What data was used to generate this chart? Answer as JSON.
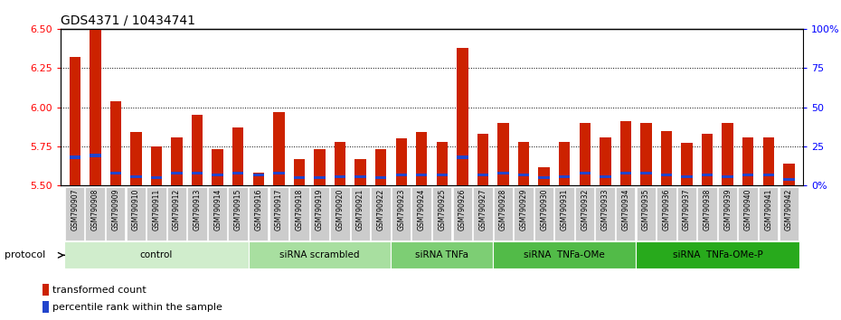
{
  "title": "GDS4371 / 10434741",
  "samples": [
    "GSM790907",
    "GSM790908",
    "GSM790909",
    "GSM790910",
    "GSM790911",
    "GSM790912",
    "GSM790913",
    "GSM790914",
    "GSM790915",
    "GSM790916",
    "GSM790917",
    "GSM790918",
    "GSM790919",
    "GSM790920",
    "GSM790921",
    "GSM790922",
    "GSM790923",
    "GSM790924",
    "GSM790925",
    "GSM790926",
    "GSM790927",
    "GSM790928",
    "GSM790929",
    "GSM790930",
    "GSM790931",
    "GSM790932",
    "GSM790933",
    "GSM790934",
    "GSM790935",
    "GSM790936",
    "GSM790937",
    "GSM790938",
    "GSM790939",
    "GSM790940",
    "GSM790941",
    "GSM790942"
  ],
  "red_values": [
    6.32,
    6.5,
    6.04,
    5.84,
    5.75,
    5.81,
    5.95,
    5.73,
    5.87,
    5.58,
    5.97,
    5.67,
    5.73,
    5.78,
    5.67,
    5.73,
    5.8,
    5.84,
    5.78,
    6.38,
    5.83,
    5.9,
    5.78,
    5.62,
    5.78,
    5.9,
    5.81,
    5.91,
    5.9,
    5.85,
    5.77,
    5.83,
    5.9,
    5.81,
    5.81,
    5.64
  ],
  "blue_bottoms": [
    5.67,
    5.68,
    5.57,
    5.55,
    5.54,
    5.57,
    5.57,
    5.56,
    5.57,
    5.56,
    5.57,
    5.54,
    5.54,
    5.55,
    5.55,
    5.54,
    5.56,
    5.56,
    5.56,
    5.67,
    5.56,
    5.57,
    5.56,
    5.54,
    5.55,
    5.57,
    5.55,
    5.57,
    5.57,
    5.56,
    5.55,
    5.56,
    5.55,
    5.56,
    5.56,
    5.53
  ],
  "blue_heights": [
    0.022,
    0.022,
    0.018,
    0.018,
    0.018,
    0.018,
    0.018,
    0.018,
    0.018,
    0.018,
    0.018,
    0.018,
    0.018,
    0.018,
    0.018,
    0.018,
    0.018,
    0.018,
    0.018,
    0.022,
    0.018,
    0.018,
    0.018,
    0.018,
    0.018,
    0.018,
    0.018,
    0.018,
    0.018,
    0.018,
    0.018,
    0.018,
    0.018,
    0.018,
    0.018,
    0.018
  ],
  "ymin": 5.5,
  "ymax": 6.5,
  "yticks": [
    5.5,
    5.75,
    6.0,
    6.25,
    6.5
  ],
  "right_yticks": [
    0,
    25,
    50,
    75,
    100
  ],
  "groups": [
    {
      "label": "control",
      "start": 0,
      "end": 9,
      "color": "#d0edcc"
    },
    {
      "label": "siRNA scrambled",
      "start": 9,
      "end": 16,
      "color": "#a8dfa0"
    },
    {
      "label": "siRNA TNFa",
      "start": 16,
      "end": 21,
      "color": "#7dce74"
    },
    {
      "label": "siRNA  TNFa-OMe",
      "start": 21,
      "end": 28,
      "color": "#52bb48"
    },
    {
      "label": "siRNA  TNFa-OMe-P",
      "start": 28,
      "end": 36,
      "color": "#28aa1c"
    }
  ],
  "bar_width": 0.55,
  "red_color": "#cc2200",
  "blue_color": "#2244cc",
  "title_fontsize": 10,
  "protocol_label": "protocol"
}
